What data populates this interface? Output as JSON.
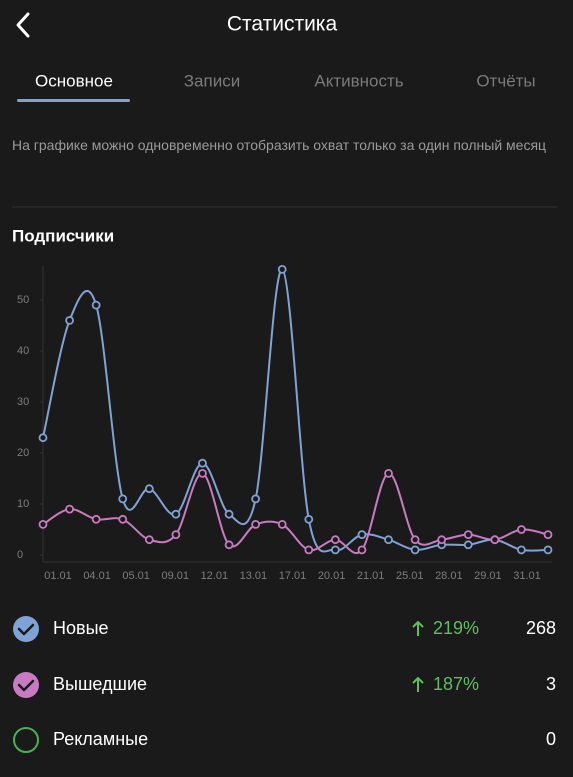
{
  "header": {
    "title": "Статистика"
  },
  "tabs": [
    "Основное",
    "Записи",
    "Активность",
    "Отчёты"
  ],
  "note": "На графике можно одновременно отобразить охват только за один полный месяц",
  "chart_data": {
    "type": "line",
    "title": "Подписчики",
    "categories": [
      "01.01",
      null,
      "04.01",
      null,
      "05.01",
      "09.01",
      null,
      "12.01",
      "13.01",
      "17.01",
      null,
      "20.01",
      "21.01",
      null,
      "25.01",
      "28.01",
      null,
      "29.01",
      "31.01",
      null
    ],
    "series": [
      {
        "name": "Новые",
        "color": "#7fa3d6",
        "values": [
          23,
          46,
          49,
          11,
          13,
          8,
          18,
          8,
          11,
          56,
          7,
          1,
          4,
          3,
          1,
          2,
          2,
          3,
          1,
          1
        ]
      },
      {
        "name": "Вышедшие",
        "color": "#c97bc1",
        "values": [
          6,
          9,
          7,
          7,
          3,
          4,
          16,
          2,
          6,
          6,
          1,
          3,
          1,
          16,
          3,
          3,
          4,
          3,
          5,
          4
        ]
      }
    ],
    "ylim": [
      0,
      56
    ],
    "yticks": [
      0,
      10,
      20,
      30,
      40,
      50
    ]
  },
  "summary": [
    {
      "change": "219%",
      "total": 268
    },
    {
      "change": "187%",
      "total": 3
    },
    {
      "name": "Рекламные",
      "total": 0
    }
  ]
}
